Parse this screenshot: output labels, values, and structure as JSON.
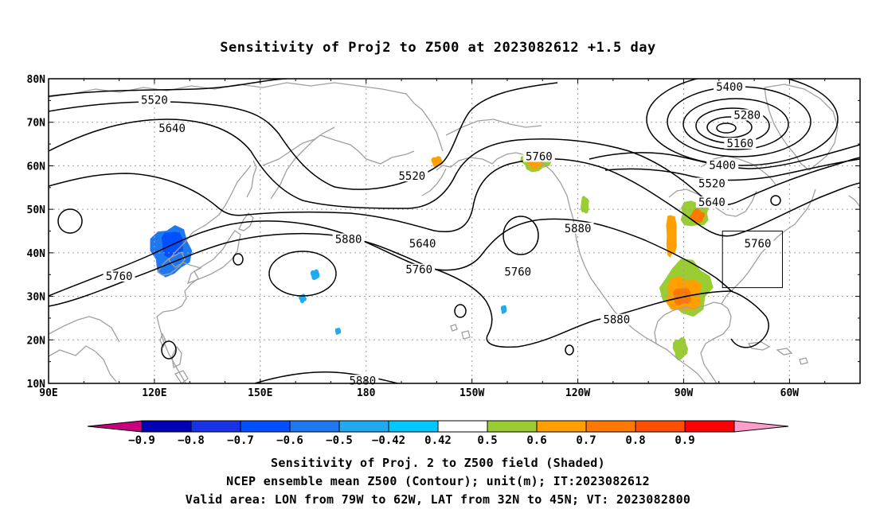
{
  "title": "Sensitivity of Proj2 to Z500 at 2023082612 +1.5 day",
  "map": {
    "lon_labels": [
      "90E",
      "120E",
      "150E",
      "180",
      "150W",
      "120W",
      "90W",
      "60W"
    ],
    "lat_labels": [
      "80N",
      "70N",
      "60N",
      "50N",
      "40N",
      "30N",
      "20N",
      "10N"
    ],
    "extent": {
      "lon_min": 90,
      "lon_max": 320,
      "lat_min": 10,
      "lat_max": 80
    },
    "grid": "dotted",
    "contour_color": "#000000",
    "coast_color": "#a0a0a0",
    "contour_labels": [
      {
        "text": "5520",
        "lon": 120,
        "lat": 75
      },
      {
        "text": "5640",
        "lon": 125,
        "lat": 68.5
      },
      {
        "text": "5520",
        "lon": 193,
        "lat": 57.5
      },
      {
        "text": "5640",
        "lon": 196,
        "lat": 42
      },
      {
        "text": "5760",
        "lon": 195,
        "lat": 36
      },
      {
        "text": "5880",
        "lon": 175,
        "lat": 43
      },
      {
        "text": "5760",
        "lon": 110,
        "lat": 34.5
      },
      {
        "text": "5760",
        "lon": 223,
        "lat": 35.5
      },
      {
        "text": "5760",
        "lon": 229,
        "lat": 62
      },
      {
        "text": "5880",
        "lon": 240,
        "lat": 45.5
      },
      {
        "text": "5880",
        "lon": 251,
        "lat": 24.5
      },
      {
        "text": "5880",
        "lon": 179,
        "lat": 10.5
      },
      {
        "text": "5400",
        "lon": 283,
        "lat": 78
      },
      {
        "text": "5280",
        "lon": 288,
        "lat": 71.5
      },
      {
        "text": "5160",
        "lon": 286,
        "lat": 65
      },
      {
        "text": "5400",
        "lon": 281,
        "lat": 60
      },
      {
        "text": "5520",
        "lon": 278,
        "lat": 55.8
      },
      {
        "text": "5640",
        "lon": 278,
        "lat": 51.5
      },
      {
        "text": "5760",
        "lon": 291,
        "lat": 42
      }
    ],
    "valid_box": {
      "lon_min": 281,
      "lon_max": 298,
      "lat_min": 32,
      "lat_max": 45
    },
    "shaded_regions": [
      {
        "lon": 124.5,
        "lat": 40.5,
        "rlon": 5.5,
        "rlat": 5.5,
        "level": -0.6
      },
      {
        "lon": 125,
        "lat": 42,
        "rlon": 3,
        "rlat": 3,
        "level": -0.7
      },
      {
        "lon": 165.5,
        "lat": 35,
        "rlon": 1.2,
        "rlat": 1.2,
        "level": -0.5
      },
      {
        "lon": 162,
        "lat": 29.5,
        "rlon": 1,
        "rlat": 1,
        "level": -0.45
      },
      {
        "lon": 172,
        "lat": 22,
        "rlon": 0.8,
        "rlat": 0.8,
        "level": -0.45
      },
      {
        "lon": 219,
        "lat": 27,
        "rlon": 0.8,
        "rlat": 1,
        "level": -0.45
      },
      {
        "lon": 96,
        "lat": 64,
        "rlon": 1.2,
        "rlat": 1,
        "level": 0.45
      },
      {
        "lon": 200,
        "lat": 61,
        "rlon": 1.5,
        "rlat": 1.2,
        "level": 0.6
      },
      {
        "lon": 228,
        "lat": 61,
        "rlon": 4,
        "rlat": 2.2,
        "level": 0.5
      },
      {
        "lon": 228,
        "lat": 60.5,
        "rlon": 2.2,
        "rlat": 1.2,
        "level": 0.6
      },
      {
        "lon": 216,
        "lat": 60,
        "rlon": 1,
        "rlat": 0.8,
        "level": 0.45
      },
      {
        "lon": 242,
        "lat": 51,
        "rlon": 1.2,
        "rlat": 2,
        "level": 0.5
      },
      {
        "lon": 265,
        "lat": 38,
        "rlon": 4.5,
        "rlat": 5,
        "level": 0.45
      },
      {
        "lon": 266.5,
        "lat": 44,
        "rlon": 1.5,
        "rlat": 5,
        "level": 0.6
      },
      {
        "lon": 273,
        "lat": 49,
        "rlon": 4,
        "rlat": 3,
        "level": 0.55
      },
      {
        "lon": 274,
        "lat": 48.5,
        "rlon": 2,
        "rlat": 1.5,
        "level": 0.7
      },
      {
        "lon": 271,
        "lat": 32,
        "rlon": 7,
        "rlat": 6,
        "level": 0.5
      },
      {
        "lon": 270,
        "lat": 30.5,
        "rlon": 5,
        "rlat": 4,
        "level": 0.6
      },
      {
        "lon": 269.5,
        "lat": 30,
        "rlon": 2.5,
        "rlat": 2,
        "level": 0.7
      },
      {
        "lon": 269,
        "lat": 18,
        "rlon": 2,
        "rlat": 2.5,
        "level": 0.5
      },
      {
        "lon": 313,
        "lat": 49,
        "rlon": 1,
        "rlat": 1.2,
        "level": 0.45
      }
    ]
  },
  "colorbar": {
    "levels": [
      "-0.9",
      "-0.8",
      "-0.7",
      "-0.6",
      "-0.5",
      "-0.42",
      "0.42",
      "0.5",
      "0.6",
      "0.7",
      "0.8",
      "0.9"
    ],
    "colors": [
      "#c9007e",
      "#0000b4",
      "#1a32e6",
      "#0050ff",
      "#1e78f0",
      "#22aaf0",
      "#00c8ff",
      "#ffffff",
      "#9acd32",
      "#ffa000",
      "#ff7800",
      "#ff5000",
      "#ff0000",
      "#ff9ecb"
    ]
  },
  "captions": [
    "Sensitivity of Proj. 2 to Z500 field (Shaded)",
    "NCEP ensemble mean Z500 (Contour); unit(m); IT:2023082612",
    "Valid area: LON from 79W to 62W, LAT from 32N to 45N; VT: 2023082800"
  ]
}
